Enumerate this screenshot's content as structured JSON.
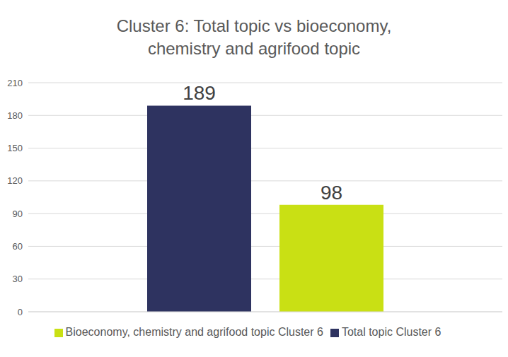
{
  "chart_data": {
    "type": "bar",
    "title": "Cluster 6: Total topic vs bioeconomy, chemistry and agrifood topic",
    "categories": [
      null
    ],
    "series": [
      {
        "name": "Total topic Cluster 6",
        "color": "#2e3360",
        "values": [
          189
        ]
      },
      {
        "name": "Bioeconomy, chemistry and agrifood topic Cluster 6",
        "color": "#c9e014",
        "values": [
          98
        ]
      }
    ],
    "ylim": [
      0,
      210
    ],
    "yticks": [
      0,
      30,
      60,
      90,
      120,
      150,
      180,
      210
    ],
    "grid": true,
    "legend": "bottom",
    "data_labels": true
  }
}
